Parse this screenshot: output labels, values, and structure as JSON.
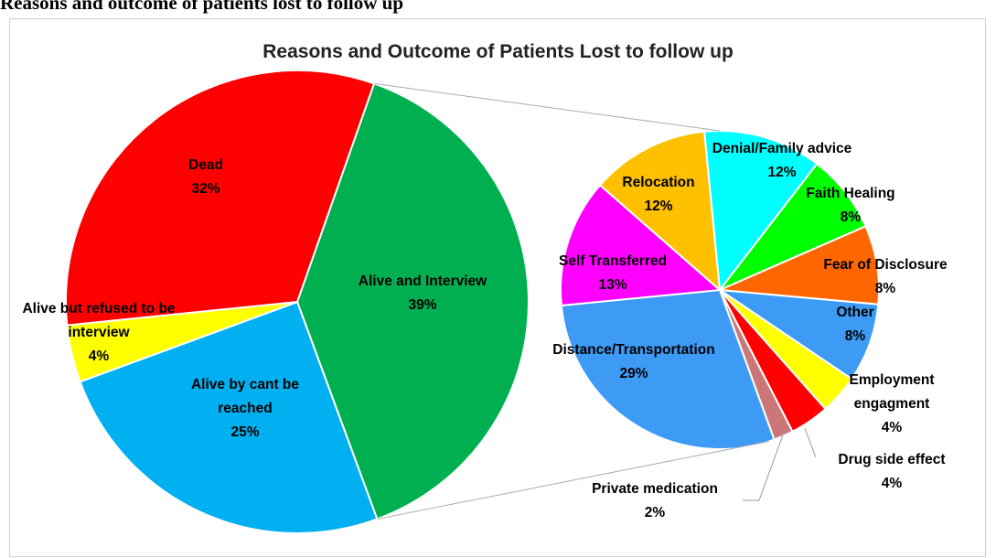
{
  "page_title": "Reasons and outcome of patients lost to follow up",
  "chart_data": [
    {
      "type": "pie",
      "title": "Reasons and Outcome of Patients Lost to follow up",
      "categories": [
        "Alive and Interview",
        "Alive by cant be reached",
        "Alive but refused to be interview",
        "Dead"
      ],
      "values": [
        39,
        25,
        4,
        32
      ],
      "value_labels": [
        "39%",
        "25%",
        "4%",
        "32%"
      ],
      "colors": [
        "#00b050",
        "#00b0f0",
        "#ffff00",
        "#ff0000"
      ]
    },
    {
      "type": "pie",
      "categories": [
        "Denial/Family advice",
        "Faith Healing",
        "Fear of Disclosure",
        "Other",
        "Employment engagment",
        "Drug side effect",
        "Private medication",
        "Distance/Transportation",
        "Self Transferred",
        "Relocation"
      ],
      "values": [
        12,
        8,
        8,
        8,
        4,
        4,
        2,
        29,
        13,
        12
      ],
      "value_labels": [
        "12%",
        "8%",
        "8%",
        "8%",
        "4%",
        "4%",
        "2%",
        "29%",
        "13%",
        "12%"
      ],
      "colors": [
        "#00ffff",
        "#00ff00",
        "#ff6600",
        "#3d9bf5",
        "#ffff00",
        "#ff0000",
        "#cc7777",
        "#3d9bf5",
        "#ff00ff",
        "#ffc000"
      ]
    }
  ]
}
